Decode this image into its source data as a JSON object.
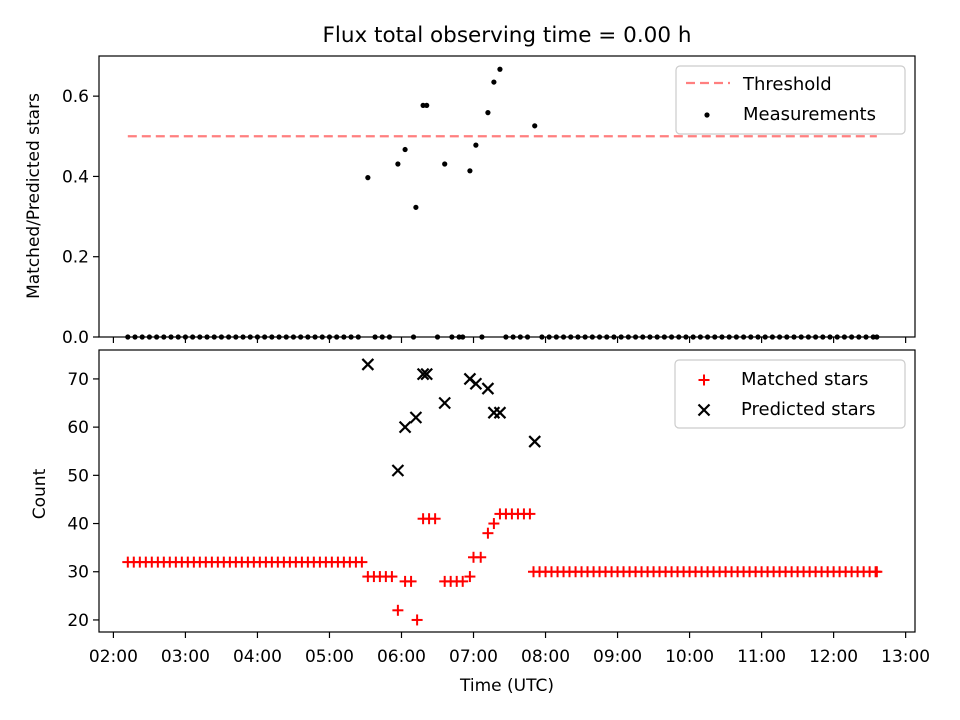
{
  "title": "Flux total observing time = 0.00 h",
  "colors": {
    "threshold": "#ff7f7f",
    "measurement": "#000000",
    "matched": "#ff0000",
    "predicted": "#000000"
  },
  "chart_data": [
    {
      "type": "scatter",
      "ylabel": "Matched/Predicted stars",
      "ylim": [
        0,
        0.7
      ],
      "yticks": [
        0.0,
        0.2,
        0.4,
        0.6
      ],
      "ytick_labels": [
        "0.0",
        "0.2",
        "0.4",
        "0.6"
      ],
      "xlim": [
        1.8,
        13.13
      ],
      "legend_position": "top-right",
      "threshold": {
        "label": "Threshold",
        "value": 0.5,
        "x_range": [
          2.2,
          12.6
        ]
      },
      "measurements": {
        "label": "Measurements",
        "x": [
          2.2,
          2.3,
          2.4,
          2.5,
          2.6,
          2.7,
          2.8,
          2.9,
          3.0,
          3.1,
          3.2,
          3.3,
          3.4,
          3.5,
          3.6,
          3.7,
          3.8,
          3.9,
          4.0,
          4.1,
          4.2,
          4.3,
          4.4,
          4.5,
          4.6,
          4.7,
          4.8,
          4.9,
          5.0,
          5.1,
          5.2,
          5.3,
          5.4,
          5.533,
          5.633,
          5.733,
          5.833,
          5.95,
          6.05,
          6.167,
          6.2,
          6.3,
          6.35,
          6.5,
          6.6,
          6.7,
          6.8,
          6.85,
          6.95,
          7.033,
          7.117,
          7.2,
          7.283,
          7.367,
          7.45,
          7.55,
          7.65,
          7.75,
          7.85,
          7.95,
          8.05,
          8.15,
          8.25,
          8.35,
          8.45,
          8.55,
          8.65,
          8.75,
          8.85,
          8.95,
          9.05,
          9.15,
          9.25,
          9.35,
          9.45,
          9.55,
          9.65,
          9.75,
          9.85,
          9.95,
          10.05,
          10.15,
          10.25,
          10.35,
          10.45,
          10.55,
          10.65,
          10.75,
          10.85,
          10.95,
          11.05,
          11.15,
          11.25,
          11.35,
          11.45,
          11.55,
          11.65,
          11.75,
          11.85,
          11.95,
          12.05,
          12.15,
          12.25,
          12.35,
          12.45,
          12.55,
          12.6
        ],
        "y": [
          0,
          0,
          0,
          0,
          0,
          0,
          0,
          0,
          0,
          0,
          0,
          0,
          0,
          0,
          0,
          0,
          0,
          0,
          0,
          0,
          0,
          0,
          0,
          0,
          0,
          0,
          0,
          0,
          0,
          0,
          0,
          0,
          0,
          0.397,
          0,
          0,
          0,
          0.431,
          0.467,
          0,
          0.323,
          0.577,
          0.577,
          0,
          0.431,
          0,
          0,
          0,
          0.414,
          0.478,
          0,
          0.559,
          0.635,
          0.667,
          0,
          0,
          0,
          0,
          0.526,
          0,
          0,
          0,
          0,
          0,
          0,
          0,
          0,
          0,
          0,
          0,
          0,
          0,
          0,
          0,
          0,
          0,
          0,
          0,
          0,
          0,
          0,
          0,
          0,
          0,
          0,
          0,
          0,
          0,
          0,
          0,
          0,
          0,
          0,
          0,
          0,
          0,
          0,
          0,
          0,
          0,
          0,
          0,
          0,
          0,
          0,
          0,
          0
        ]
      }
    },
    {
      "type": "scatter",
      "ylabel": "Count",
      "xlabel": "Time (UTC)",
      "ylim": [
        17.5,
        76
      ],
      "yticks": [
        20,
        30,
        40,
        50,
        60,
        70
      ],
      "ytick_labels": [
        "20",
        "30",
        "40",
        "50",
        "60",
        "70"
      ],
      "xlim": [
        1.8,
        13.13
      ],
      "xticks": [
        2,
        3,
        4,
        5,
        6,
        7,
        8,
        9,
        10,
        11,
        12,
        13
      ],
      "xtick_labels": [
        "02:00",
        "03:00",
        "04:00",
        "05:00",
        "06:00",
        "07:00",
        "08:00",
        "09:00",
        "10:00",
        "11:00",
        "12:00",
        "13:00"
      ],
      "legend_position": "top-right",
      "series": [
        {
          "name": "Matched stars",
          "marker": "+",
          "x": [
            2.2,
            2.283,
            2.367,
            2.45,
            2.533,
            2.617,
            2.7,
            2.783,
            2.867,
            2.95,
            3.033,
            3.117,
            3.2,
            3.283,
            3.367,
            3.45,
            3.533,
            3.617,
            3.7,
            3.783,
            3.867,
            3.95,
            4.033,
            4.117,
            4.2,
            4.283,
            4.367,
            4.45,
            4.533,
            4.617,
            4.7,
            4.783,
            4.867,
            4.95,
            5.033,
            5.117,
            5.2,
            5.283,
            5.367,
            5.45,
            5.533,
            5.617,
            5.7,
            5.783,
            5.867,
            5.95,
            6.05,
            6.133,
            6.217,
            6.3,
            6.383,
            6.467,
            6.6,
            6.683,
            6.767,
            6.85,
            6.95,
            7.0,
            7.1,
            7.2,
            7.283,
            7.367,
            7.45,
            7.533,
            7.617,
            7.7,
            7.783,
            7.833,
            7.917,
            8.0,
            8.083,
            8.167,
            8.25,
            8.333,
            8.417,
            8.5,
            8.583,
            8.667,
            8.75,
            8.833,
            8.917,
            9.0,
            9.083,
            9.167,
            9.25,
            9.333,
            9.417,
            9.5,
            9.583,
            9.667,
            9.75,
            9.833,
            9.917,
            10.0,
            10.083,
            10.167,
            10.25,
            10.333,
            10.417,
            10.5,
            10.583,
            10.667,
            10.75,
            10.833,
            10.917,
            11.0,
            11.083,
            11.167,
            11.25,
            11.333,
            11.417,
            11.5,
            11.583,
            11.667,
            11.75,
            11.833,
            11.917,
            12.0,
            12.083,
            12.167,
            12.25,
            12.333,
            12.417,
            12.5,
            12.583,
            12.6
          ],
          "values": [
            32,
            32,
            32,
            32,
            32,
            32,
            32,
            32,
            32,
            32,
            32,
            32,
            32,
            32,
            32,
            32,
            32,
            32,
            32,
            32,
            32,
            32,
            32,
            32,
            32,
            32,
            32,
            32,
            32,
            32,
            32,
            32,
            32,
            32,
            32,
            32,
            32,
            32,
            32,
            32,
            29,
            29,
            29,
            29,
            29,
            22,
            28,
            28,
            20,
            41,
            41,
            41,
            28,
            28,
            28,
            28,
            29,
            33,
            33,
            38,
            40,
            42,
            42,
            42,
            42,
            42,
            42,
            30,
            30,
            30,
            30,
            30,
            30,
            30,
            30,
            30,
            30,
            30,
            30,
            30,
            30,
            30,
            30,
            30,
            30,
            30,
            30,
            30,
            30,
            30,
            30,
            30,
            30,
            30,
            30,
            30,
            30,
            30,
            30,
            30,
            30,
            30,
            30,
            30,
            30,
            30,
            30,
            30,
            30,
            30,
            30,
            30,
            30,
            30,
            30,
            30,
            30,
            30,
            30,
            30,
            30,
            30,
            30,
            30,
            30,
            30
          ]
        },
        {
          "name": "Predicted stars",
          "marker": "x",
          "x": [
            5.533,
            5.95,
            6.05,
            6.2,
            6.3,
            6.35,
            6.6,
            6.95,
            7.033,
            7.2,
            7.283,
            7.367,
            7.85
          ],
          "values": [
            73,
            51,
            60,
            62,
            71,
            71,
            65,
            70,
            69,
            68,
            63,
            63,
            57
          ]
        }
      ]
    }
  ]
}
